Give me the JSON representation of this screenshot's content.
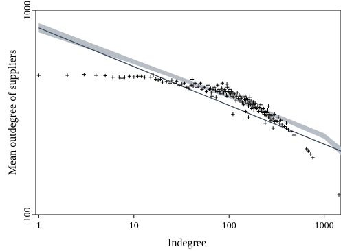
{
  "chart_data": {
    "type": "scatter",
    "title": "",
    "xlabel": "Indegree",
    "ylabel": "Mean outdegree of suppliers",
    "xscale": "log",
    "yscale": "log",
    "xlim": [
      0.93,
      1500
    ],
    "ylim": [
      100,
      1000
    ],
    "x_ticks": [
      {
        "value": 1,
        "label": "1"
      },
      {
        "value": 10,
        "label": "10"
      },
      {
        "value": 100,
        "label": "100"
      },
      {
        "value": 1000,
        "label": "1000"
      }
    ],
    "y_ticks": [
      {
        "value": 100,
        "label": "100"
      },
      {
        "value": 1000,
        "label": "1000"
      }
    ],
    "grid": false,
    "legend": "none",
    "marker": "+",
    "colors": {
      "points": "#000000",
      "fit_line": "#3b4a5c",
      "ci_band": "#b8bec6"
    },
    "fit_line": {
      "x": [
        1,
        1500
      ],
      "y": [
        820,
        205
      ]
    },
    "ci_band": {
      "x": [
        1,
        10,
        100,
        1000,
        1500
      ],
      "upper": [
        865,
        575,
        385,
        250,
        215
      ],
      "lower": [
        780,
        545,
        372,
        235,
        196
      ]
    },
    "points": [
      [
        1,
        480
      ],
      [
        2,
        480
      ],
      [
        3,
        485
      ],
      [
        4,
        480
      ],
      [
        5,
        478
      ],
      [
        6,
        470
      ],
      [
        7,
        470
      ],
      [
        7.5,
        465
      ],
      [
        8,
        470
      ],
      [
        9,
        475
      ],
      [
        10,
        472
      ],
      [
        11,
        475
      ],
      [
        12,
        475
      ],
      [
        13,
        470
      ],
      [
        15,
        470
      ],
      [
        16,
        482
      ],
      [
        17,
        460
      ],
      [
        18,
        455
      ],
      [
        19,
        460
      ],
      [
        20,
        445
      ],
      [
        22,
        448
      ],
      [
        24,
        440
      ],
      [
        25,
        455
      ],
      [
        27,
        440
      ],
      [
        28,
        450
      ],
      [
        30,
        430
      ],
      [
        32,
        435
      ],
      [
        34,
        440
      ],
      [
        36,
        420
      ],
      [
        38,
        415
      ],
      [
        40,
        430
      ],
      [
        41,
        460
      ],
      [
        42,
        425
      ],
      [
        44,
        440
      ],
      [
        46,
        420
      ],
      [
        48,
        425
      ],
      [
        50,
        440
      ],
      [
        52,
        410
      ],
      [
        55,
        420
      ],
      [
        58,
        400
      ],
      [
        60,
        430
      ],
      [
        62,
        410
      ],
      [
        64,
        415
      ],
      [
        65,
        395
      ],
      [
        66,
        380
      ],
      [
        68,
        410
      ],
      [
        70,
        420
      ],
      [
        72,
        405
      ],
      [
        73,
        375
      ],
      [
        75,
        400
      ],
      [
        76,
        430
      ],
      [
        78,
        410
      ],
      [
        80,
        400
      ],
      [
        82,
        390
      ],
      [
        84,
        415
      ],
      [
        85,
        440
      ],
      [
        86,
        405
      ],
      [
        88,
        395
      ],
      [
        90,
        410
      ],
      [
        92,
        400
      ],
      [
        94,
        385
      ],
      [
        95,
        380
      ],
      [
        96,
        420
      ],
      [
        98,
        400
      ],
      [
        100,
        395
      ],
      [
        102,
        410
      ],
      [
        104,
        390
      ],
      [
        106,
        400
      ],
      [
        108,
        380
      ],
      [
        110,
        395
      ],
      [
        112,
        375
      ],
      [
        115,
        390
      ],
      [
        118,
        360
      ],
      [
        120,
        380
      ],
      [
        122,
        395
      ],
      [
        125,
        370
      ],
      [
        128,
        385
      ],
      [
        130,
        360
      ],
      [
        132,
        380
      ],
      [
        135,
        370
      ],
      [
        138,
        355
      ],
      [
        140,
        375
      ],
      [
        142,
        345
      ],
      [
        145,
        365
      ],
      [
        148,
        380
      ],
      [
        150,
        360
      ],
      [
        152,
        370
      ],
      [
        155,
        350
      ],
      [
        158,
        365
      ],
      [
        160,
        340
      ],
      [
        162,
        355
      ],
      [
        165,
        375
      ],
      [
        168,
        345
      ],
      [
        170,
        360
      ],
      [
        172,
        330
      ],
      [
        175,
        350
      ],
      [
        178,
        340
      ],
      [
        180,
        355
      ],
      [
        182,
        325
      ],
      [
        185,
        345
      ],
      [
        188,
        335
      ],
      [
        190,
        350
      ],
      [
        195,
        330
      ],
      [
        200,
        340
      ],
      [
        205,
        320
      ],
      [
        210,
        335
      ],
      [
        215,
        345
      ],
      [
        220,
        325
      ],
      [
        225,
        315
      ],
      [
        230,
        330
      ],
      [
        235,
        310
      ],
      [
        240,
        320
      ],
      [
        245,
        305
      ],
      [
        250,
        315
      ],
      [
        255,
        325
      ],
      [
        260,
        300
      ],
      [
        265,
        310
      ],
      [
        270,
        300
      ],
      [
        275,
        290
      ],
      [
        280,
        305
      ],
      [
        290,
        295
      ],
      [
        300,
        310
      ],
      [
        310,
        290
      ],
      [
        320,
        285
      ],
      [
        330,
        300
      ],
      [
        340,
        280
      ],
      [
        350,
        290
      ],
      [
        360,
        275
      ],
      [
        380,
        270
      ],
      [
        400,
        265
      ],
      [
        420,
        260
      ],
      [
        450,
        255
      ],
      [
        480,
        245
      ],
      [
        650,
        210
      ],
      [
        680,
        205
      ],
      [
        720,
        198
      ],
      [
        760,
        190
      ],
      [
        110,
        310
      ],
      [
        150,
        320
      ],
      [
        160,
        300
      ],
      [
        240,
        280
      ],
      [
        300,
        285
      ],
      [
        290,
        265
      ],
      [
        400,
        280
      ],
      [
        95,
        435
      ],
      [
        260,
        340
      ],
      [
        1500,
        125
      ]
    ]
  }
}
